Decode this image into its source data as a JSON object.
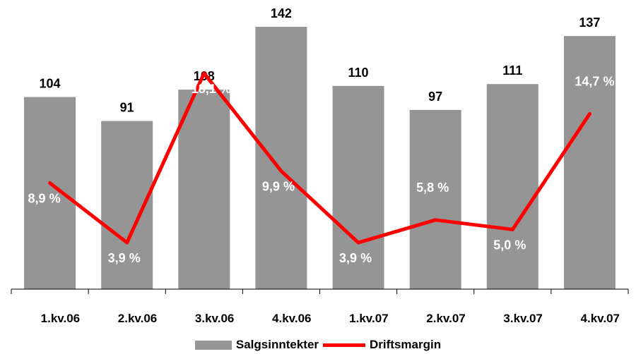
{
  "chart_data": {
    "type": "bar",
    "categories": [
      "1.kv.06",
      "2.kv.06",
      "3.kv.06",
      "4.kv.06",
      "1.kv.07",
      "2.kv.07",
      "3.kv.07",
      "4.kv.07"
    ],
    "series": [
      {
        "name": "Salgsinntekter",
        "kind": "bar",
        "color": "#959595",
        "values": [
          104,
          91,
          108,
          142,
          110,
          97,
          111,
          137
        ],
        "labels": [
          "104",
          "91",
          "108",
          "142",
          "110",
          "97",
          "111",
          "137"
        ]
      },
      {
        "name": "Driftsmargin",
        "kind": "line",
        "color": "#ff0000",
        "values": [
          8.9,
          3.9,
          18.1,
          9.9,
          3.9,
          5.8,
          5.0,
          14.7
        ],
        "labels": [
          "8,9 %",
          "3,9 %",
          "18,1 %",
          "9,9 %",
          "3,9 %",
          "5,8 %",
          "5,0 %",
          "14,7 %"
        ]
      }
    ],
    "ylim": [
      0,
      142
    ],
    "y2lim": [
      0,
      22
    ],
    "grid": false,
    "legend": "bottom"
  }
}
